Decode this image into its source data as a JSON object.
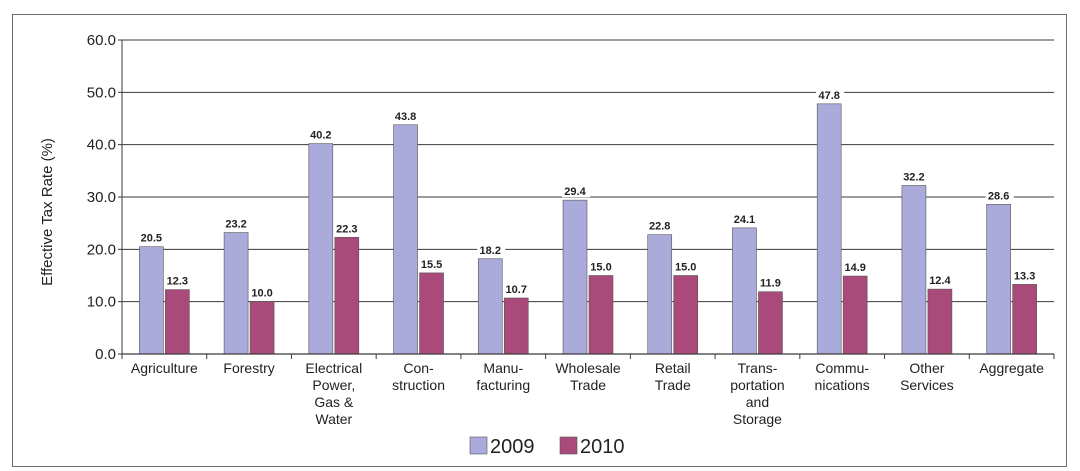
{
  "chart_data": {
    "type": "bar",
    "ylabel": "Effective Tax Rate (%)",
    "ylim": [
      0,
      60
    ],
    "yticks": [
      "0.0",
      "10.0",
      "20.0",
      "30.0",
      "40.0",
      "50.0",
      "60.0"
    ],
    "grid": true,
    "legend_position": "bottom-center",
    "categories": [
      [
        "Agriculture"
      ],
      [
        "Forestry"
      ],
      [
        "Electrical",
        "Power,",
        "Gas &",
        "Water"
      ],
      [
        "Con-",
        "struction"
      ],
      [
        "Manu-",
        "facturing"
      ],
      [
        "Wholesale",
        "Trade"
      ],
      [
        "Retail",
        "Trade"
      ],
      [
        "Trans-",
        "portation",
        "and",
        "Storage"
      ],
      [
        "Commu-",
        "nications"
      ],
      [
        "Other",
        "Services"
      ],
      [
        "Aggregate"
      ]
    ],
    "series": [
      {
        "name": "2009",
        "color": "#aaaadb",
        "values": [
          20.5,
          23.2,
          40.2,
          43.8,
          18.2,
          29.4,
          22.8,
          24.1,
          47.8,
          32.2,
          28.6
        ]
      },
      {
        "name": "2010",
        "color": "#aa4a7a",
        "values": [
          12.3,
          10.0,
          22.3,
          15.5,
          10.7,
          15.0,
          15.0,
          11.9,
          14.9,
          12.4,
          13.3
        ]
      }
    ]
  }
}
